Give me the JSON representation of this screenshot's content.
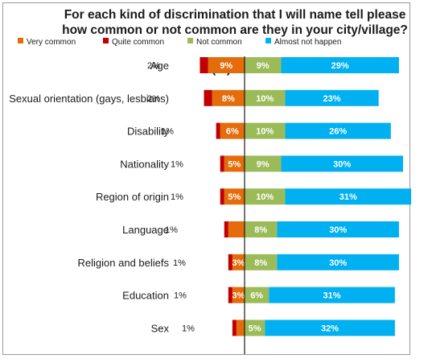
{
  "chart_data": {
    "type": "bar",
    "stacking": "diverging",
    "title_lines": [
      "For each kind of discrimination that I will name tell please",
      "how common or not common are they in your city/village?"
    ],
    "unit_label": "(%)",
    "legend_position": "top",
    "categories": [
      "Age",
      "Sexual orientation (gays, lesbians)",
      "Disability",
      "Nationality",
      "Region of origin",
      "Language",
      "Religion and beliefs",
      "Education",
      "Sex"
    ],
    "series": [
      {
        "name": "Very common",
        "color": "#e46c0a",
        "side": "left",
        "values": [
          9,
          8,
          6,
          5,
          5,
          4,
          3,
          3,
          2
        ],
        "labels": [
          "9%",
          "8%",
          "6%",
          "5%",
          "5%",
          "",
          "3%",
          "3%",
          ""
        ]
      },
      {
        "name": "Quite common",
        "color": "#c00000",
        "side": "left",
        "values": [
          2,
          2,
          1,
          1,
          1,
          1,
          1,
          1,
          1
        ],
        "labels": [
          "2%",
          "2%",
          "1%",
          "1%",
          "1%",
          "1%",
          "1%",
          "1%",
          "1%"
        ]
      },
      {
        "name": "Not common",
        "color": "#9bbb59",
        "side": "right",
        "values": [
          9,
          10,
          10,
          9,
          10,
          8,
          8,
          6,
          5
        ],
        "labels": [
          "9%",
          "10%",
          "10%",
          "9%",
          "10%",
          "8%",
          "8%",
          "6%",
          "5%"
        ]
      },
      {
        "name": "Almost not happen",
        "color": "#00b0f0",
        "side": "right",
        "values": [
          29,
          23,
          26,
          30,
          31,
          30,
          30,
          31,
          32
        ],
        "labels": [
          "29%",
          "23%",
          "26%",
          "30%",
          "31%",
          "30%",
          "30%",
          "31%",
          "32%"
        ]
      }
    ],
    "grid": false
  }
}
